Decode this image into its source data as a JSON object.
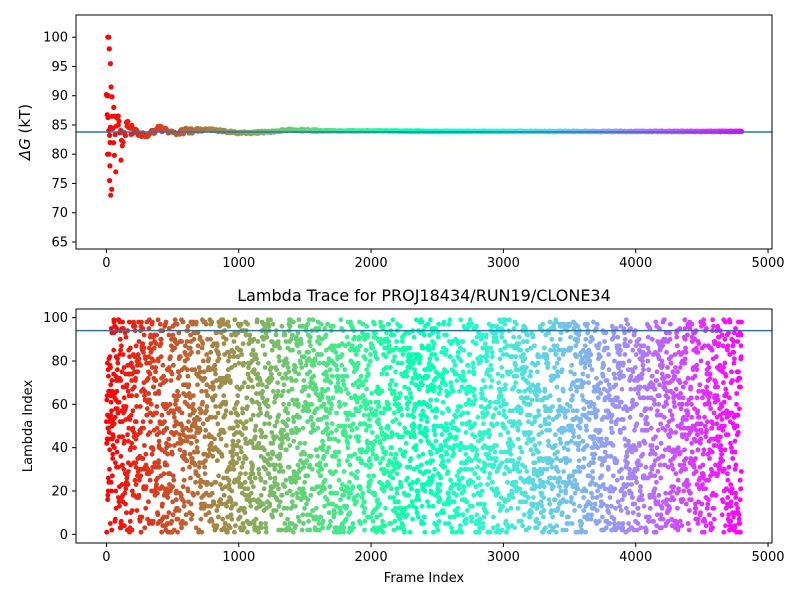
{
  "chart_data": [
    {
      "type": "scatter",
      "title": "",
      "xlabel": "",
      "ylabel_symbol": "ΔG",
      "ylabel_unit": " (kT)",
      "xlim": [
        -230,
        5030
      ],
      "ylim": [
        63.8,
        103.8
      ],
      "xticks": [
        0,
        1000,
        2000,
        3000,
        4000,
        5000
      ],
      "yticks": [
        65,
        70,
        75,
        80,
        85,
        90,
        95,
        100
      ],
      "xtick_labels": [
        "0",
        "1000",
        "2000",
        "3000",
        "4000",
        "5000"
      ],
      "ytick_labels": [
        "65",
        "70",
        "75",
        "80",
        "85",
        "90",
        "95",
        "100"
      ],
      "hline": 83.8,
      "hline_color": "#1f77b4",
      "n_frames": 4800,
      "colormap": "rainbow (red at frame 0 to violet at last frame)",
      "series_outline": {
        "x": [
          0,
          20,
          40,
          60,
          80,
          100,
          120,
          150,
          200,
          250,
          300,
          400,
          500,
          600,
          800,
          1000,
          1200,
          1400,
          1600,
          2000,
          2500,
          3000,
          4000,
          4800
        ],
        "y": [
          90,
          82,
          86,
          80,
          88,
          84,
          82,
          85,
          84.5,
          83.5,
          83.2,
          84.5,
          83.5,
          84,
          84.2,
          83.6,
          83.8,
          84.2,
          84,
          84,
          83.9,
          83.9,
          83.9,
          83.9
        ]
      },
      "early_scatter_points": [
        {
          "x": 10,
          "y": 100
        },
        {
          "x": 18,
          "y": 100
        },
        {
          "x": 22,
          "y": 98
        },
        {
          "x": 30,
          "y": 95.5
        },
        {
          "x": 35,
          "y": 91.5
        },
        {
          "x": 5,
          "y": 90
        },
        {
          "x": 14,
          "y": 90
        },
        {
          "x": 42,
          "y": 89.8
        },
        {
          "x": 28,
          "y": 82
        },
        {
          "x": 8,
          "y": 80
        },
        {
          "x": 20,
          "y": 80
        },
        {
          "x": 26,
          "y": 78
        },
        {
          "x": 24,
          "y": 75.5
        },
        {
          "x": 40,
          "y": 74
        },
        {
          "x": 32,
          "y": 73
        },
        {
          "x": 55,
          "y": 88
        },
        {
          "x": 65,
          "y": 86.5
        },
        {
          "x": 70,
          "y": 77
        },
        {
          "x": 90,
          "y": 85
        },
        {
          "x": 110,
          "y": 79
        }
      ]
    },
    {
      "type": "scatter",
      "title": "Lambda Trace for PROJ18434/RUN19/CLONE34",
      "xlabel": "Frame Index",
      "ylabel": "Lambda Index",
      "xlim": [
        -230,
        5030
      ],
      "ylim": [
        -4,
        104
      ],
      "xticks": [
        0,
        1000,
        2000,
        3000,
        4000,
        5000
      ],
      "yticks": [
        0,
        20,
        40,
        60,
        80,
        100
      ],
      "xtick_labels": [
        "0",
        "1000",
        "2000",
        "3000",
        "4000",
        "5000"
      ],
      "ytick_labels": [
        "0",
        "20",
        "40",
        "60",
        "80",
        "100"
      ],
      "hline": 94,
      "hline_color": "#1f77b4",
      "lambda_range": [
        1,
        99
      ],
      "n_frames": 4800,
      "colormap": "rainbow (red at frame 0 to violet at last frame)"
    }
  ]
}
